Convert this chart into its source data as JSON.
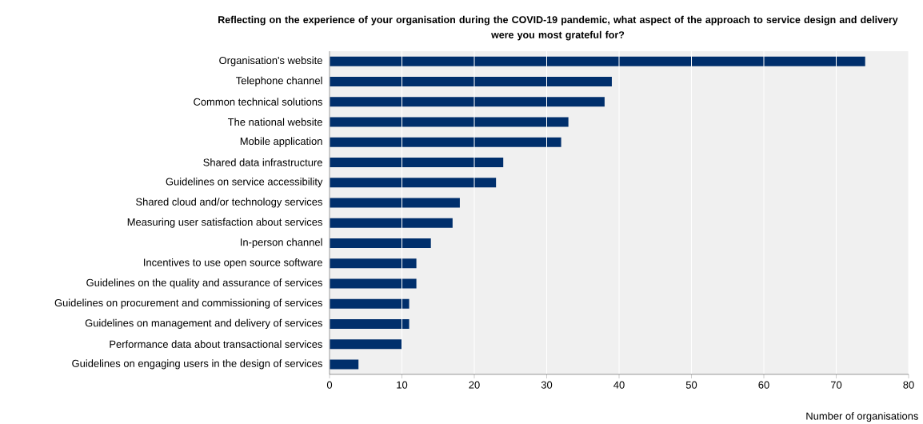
{
  "chart_data": {
    "type": "bar",
    "orientation": "horizontal",
    "title": "Reflecting on the experience of your organisation during the COVID-19 pandemic, what aspect of the approach to service design and delivery were you most grateful for?",
    "xlabel": "Number of organisations",
    "categories": [
      "Organisation's website",
      "Telephone channel",
      "Common technical solutions",
      "The national website",
      "Mobile application",
      "Shared data infrastructure",
      "Guidelines on service accessibility",
      "Shared cloud and/or technology services",
      "Measuring user satisfaction about services",
      "In-person channel",
      "Incentives to use open source software",
      "Guidelines on the quality and assurance of services",
      "Guidelines on procurement and commissioning of services",
      "Guidelines on management and delivery of services",
      "Performance data about transactional services",
      "Guidelines on engaging users in the design of services"
    ],
    "values": [
      74,
      39,
      38,
      33,
      32,
      24,
      23,
      18,
      17,
      14,
      12,
      12,
      11,
      11,
      10,
      4
    ],
    "color": "#002f6c",
    "xlim": [
      0,
      80
    ],
    "xticks": [
      0,
      10,
      20,
      30,
      40,
      50,
      60,
      70,
      80
    ],
    "grid": "x"
  }
}
